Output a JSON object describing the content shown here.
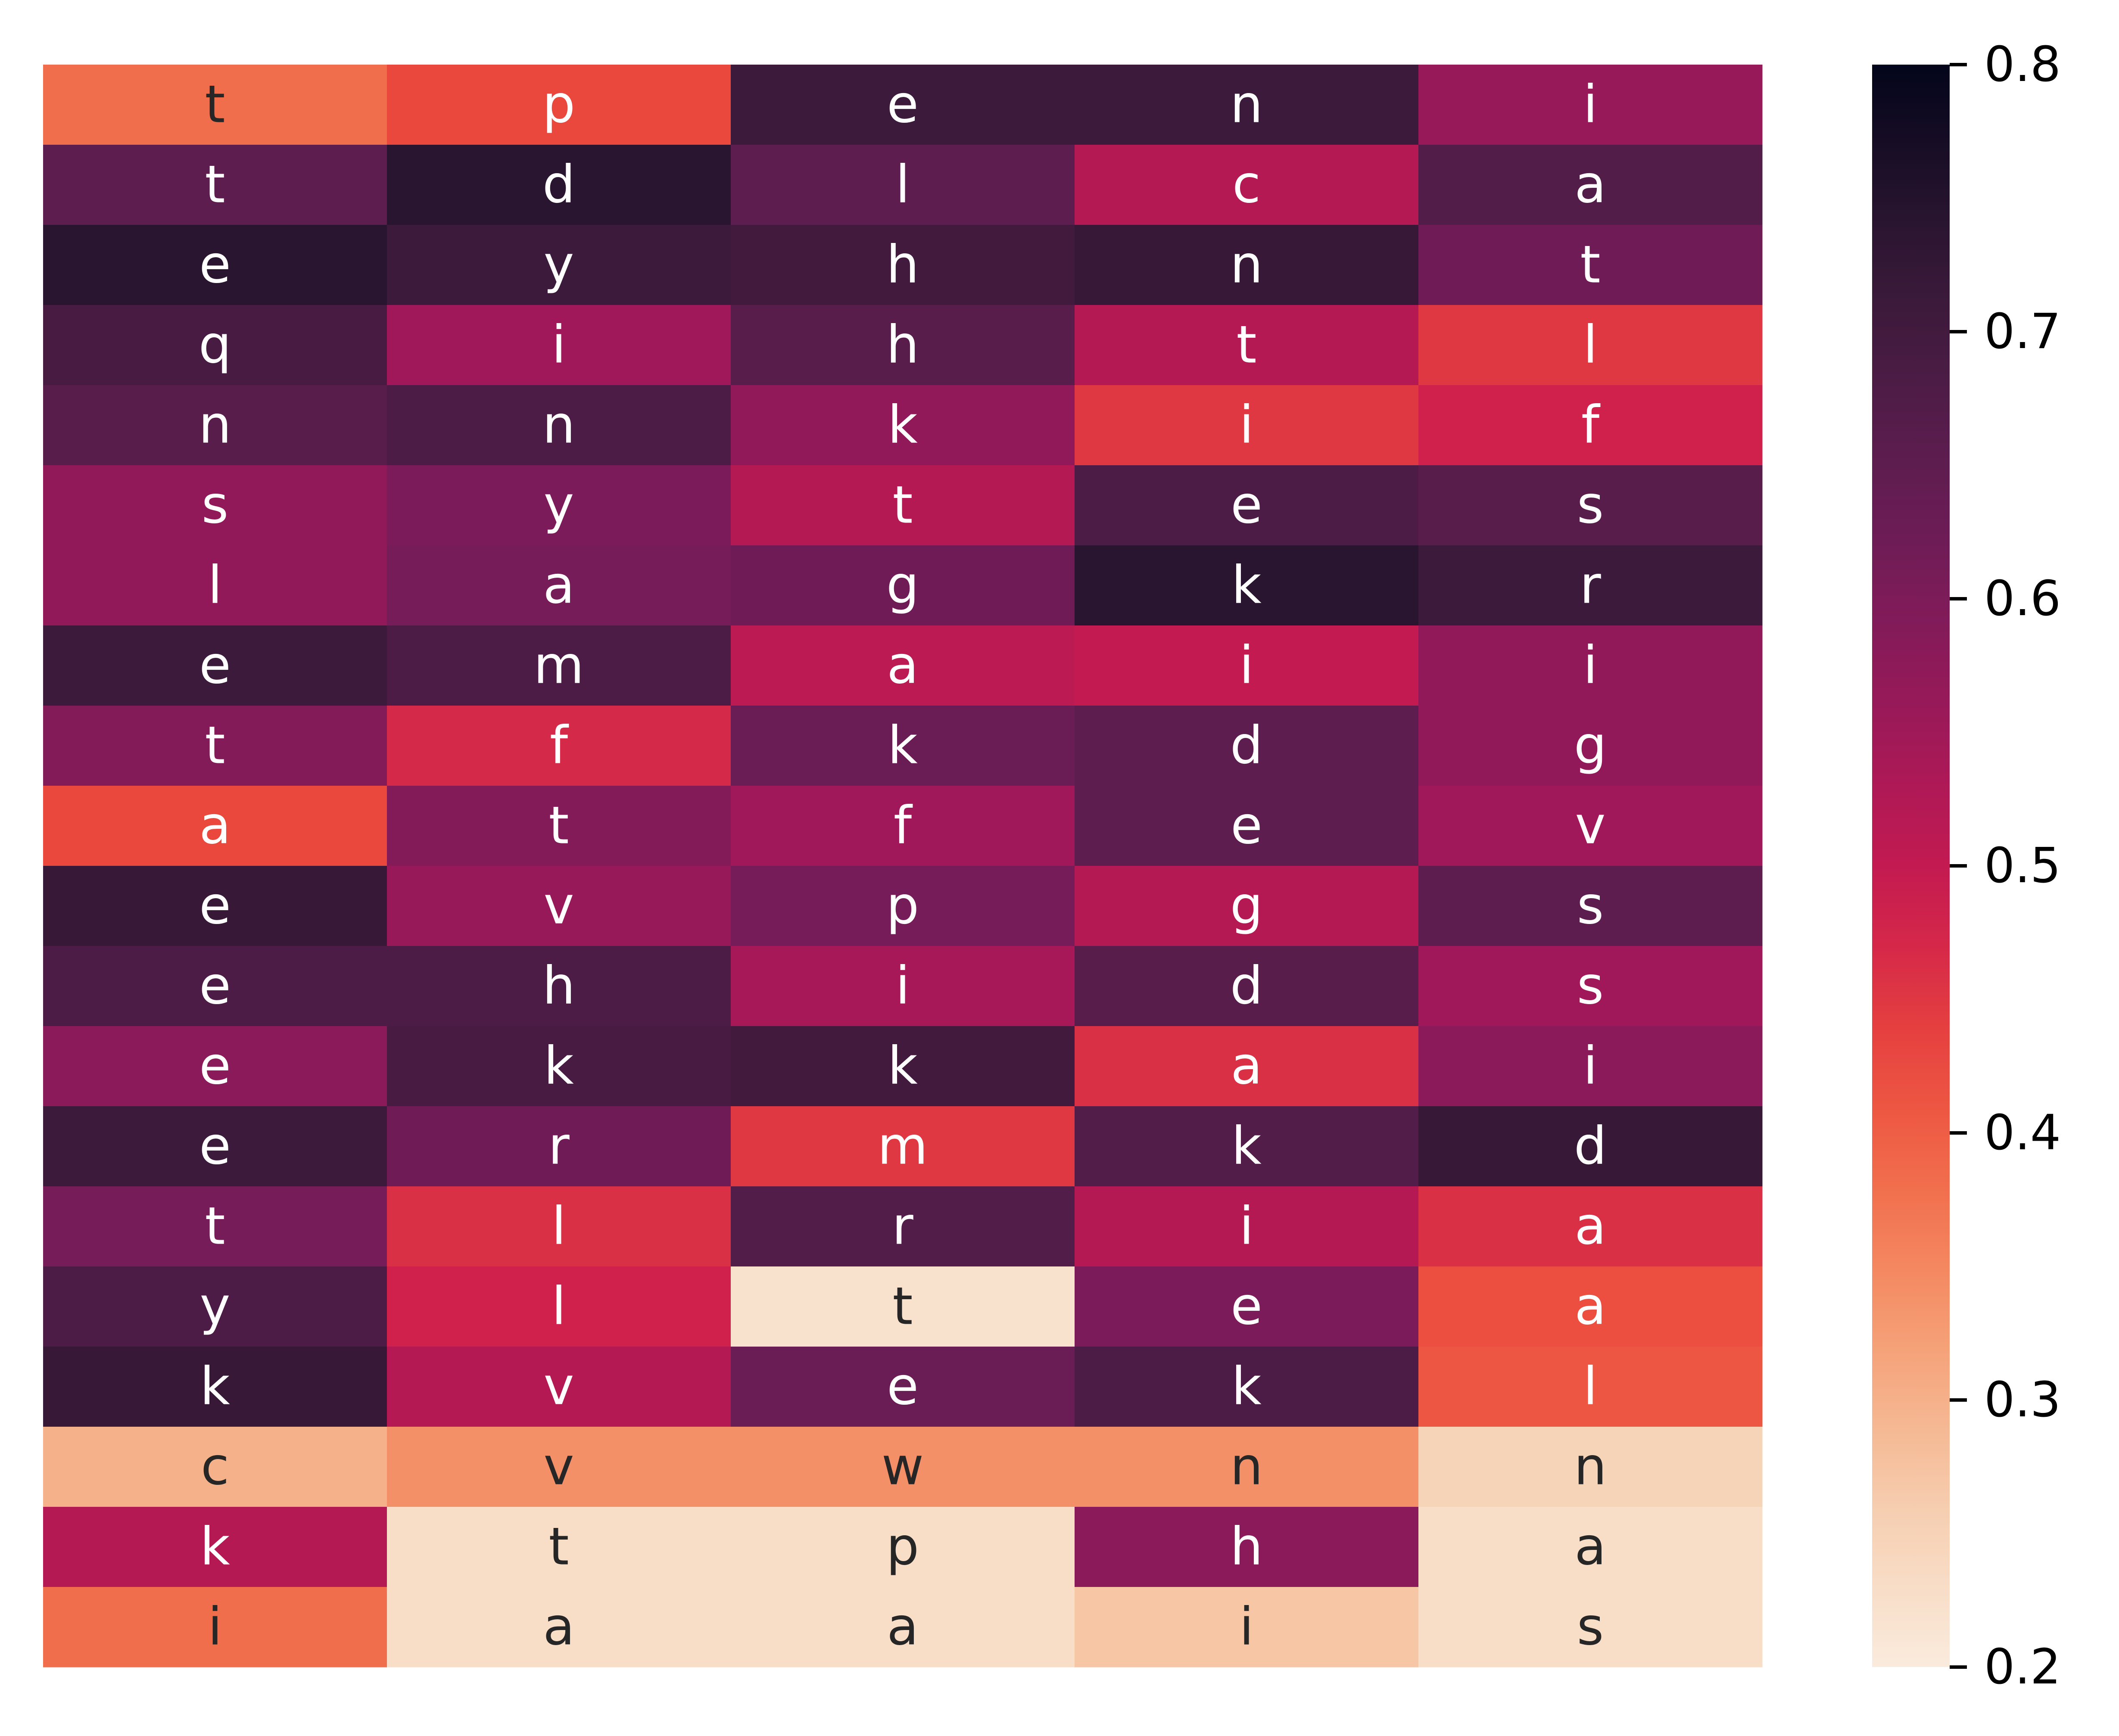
{
  "chart_data": {
    "type": "heatmap",
    "title": "",
    "xlabel": "",
    "ylabel": "",
    "x_tick_labels": [],
    "y_tick_labels": [],
    "colormap": "rocket_r",
    "vmin": 0.2,
    "vmax": 0.8,
    "colorbar_ticks": [
      "0.2",
      "0.3",
      "0.4",
      "0.5",
      "0.6",
      "0.7",
      "0.8"
    ],
    "annotations": [
      [
        "t",
        "p",
        "e",
        "n",
        "i"
      ],
      [
        "t",
        "d",
        "l",
        "c",
        "a"
      ],
      [
        "e",
        "y",
        "h",
        "n",
        "t"
      ],
      [
        "q",
        "i",
        "h",
        "t",
        "l"
      ],
      [
        "n",
        "n",
        "k",
        "i",
        "f"
      ],
      [
        "s",
        "y",
        "t",
        "e",
        "s"
      ],
      [
        "l",
        "a",
        "g",
        "k",
        "r"
      ],
      [
        "e",
        "m",
        "a",
        "i",
        "i"
      ],
      [
        "t",
        "f",
        "k",
        "d",
        "g"
      ],
      [
        "a",
        "t",
        "f",
        "e",
        "v"
      ],
      [
        "e",
        "v",
        "p",
        "g",
        "s"
      ],
      [
        "e",
        "h",
        "i",
        "d",
        "s"
      ],
      [
        "e",
        "k",
        "k",
        "a",
        "i"
      ],
      [
        "e",
        "r",
        "m",
        "k",
        "d"
      ],
      [
        "t",
        "l",
        "r",
        "i",
        "a"
      ],
      [
        "y",
        "l",
        "t",
        "e",
        "a"
      ],
      [
        "k",
        "v",
        "e",
        "k",
        "l"
      ],
      [
        "c",
        "v",
        "w",
        "n",
        "n"
      ],
      [
        "k",
        "t",
        "p",
        "h",
        "a"
      ],
      [
        "i",
        "a",
        "a",
        "i",
        "s"
      ]
    ],
    "values": [
      [
        0.38,
        0.43,
        0.71,
        0.71,
        0.56
      ],
      [
        0.65,
        0.74,
        0.65,
        0.52,
        0.67
      ],
      [
        0.74,
        0.71,
        0.7,
        0.72,
        0.62
      ],
      [
        0.69,
        0.55,
        0.66,
        0.52,
        0.45
      ],
      [
        0.66,
        0.68,
        0.57,
        0.45,
        0.48
      ],
      [
        0.57,
        0.6,
        0.52,
        0.68,
        0.66
      ],
      [
        0.57,
        0.61,
        0.62,
        0.74,
        0.71
      ],
      [
        0.71,
        0.68,
        0.51,
        0.5,
        0.57
      ],
      [
        0.59,
        0.47,
        0.63,
        0.65,
        0.57
      ],
      [
        0.43,
        0.59,
        0.55,
        0.65,
        0.55
      ],
      [
        0.72,
        0.56,
        0.61,
        0.52,
        0.65
      ],
      [
        0.68,
        0.68,
        0.54,
        0.66,
        0.55
      ],
      [
        0.58,
        0.69,
        0.7,
        0.46,
        0.58
      ],
      [
        0.71,
        0.62,
        0.45,
        0.67,
        0.72
      ],
      [
        0.61,
        0.46,
        0.67,
        0.52,
        0.46
      ],
      [
        0.68,
        0.48,
        0.22,
        0.6,
        0.42
      ],
      [
        0.72,
        0.52,
        0.63,
        0.68,
        0.41
      ],
      [
        0.3,
        0.34,
        0.34,
        0.34,
        0.25
      ],
      [
        0.52,
        0.23,
        0.23,
        0.58,
        0.23
      ],
      [
        0.38,
        0.23,
        0.23,
        0.27,
        0.23
      ]
    ],
    "text_colors": {
      "dark_bg": "#ffffff",
      "light_bg": "#262626"
    }
  }
}
